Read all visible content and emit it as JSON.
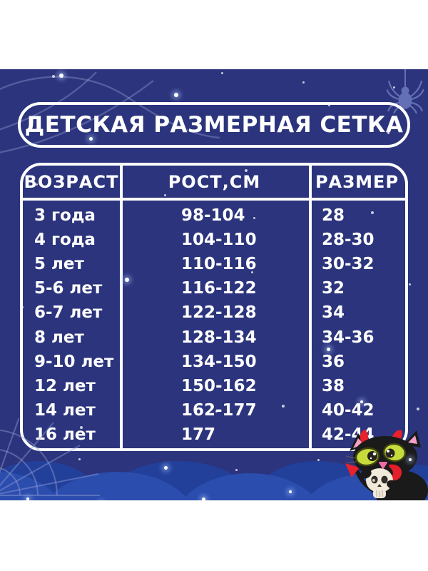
{
  "title": "ДЕТСКАЯ РАЗМЕРНАЯ СЕТКА",
  "table": {
    "columns": [
      "ВОЗРАСТ",
      "РОСТ,СМ",
      "РАЗМЕР"
    ],
    "rows": [
      [
        "3 года",
        "98-104",
        "28"
      ],
      [
        "4 года",
        "104-110",
        "28-30"
      ],
      [
        "5 лет",
        "110-116",
        "30-32"
      ],
      [
        "5-6 лет",
        "116-122",
        "32"
      ],
      [
        "6-7 лет",
        "122-128",
        "34"
      ],
      [
        "8 лет",
        "128-134",
        "34-36"
      ],
      [
        "9-10 лет",
        "134-150",
        "36"
      ],
      [
        "12 лет",
        "150-162",
        "38"
      ],
      [
        "14 лет",
        "162-177",
        "40-42"
      ],
      [
        "16 лет",
        "177",
        "42-44"
      ]
    ]
  },
  "icons": {
    "spider": "spider-icon",
    "web_top_left": "spider-web-icon",
    "web_bottom_left": "spider-web-icon",
    "cat": "devil-cat-with-skull-icon",
    "stars": "star-icon"
  },
  "colors": {
    "background": "#2b347c",
    "cloud_back": "#22409a",
    "cloud_front": "#2b4dae",
    "text": "#ffffff",
    "accent_red": "#e8212b",
    "eye_green": "#c6dc3c"
  }
}
